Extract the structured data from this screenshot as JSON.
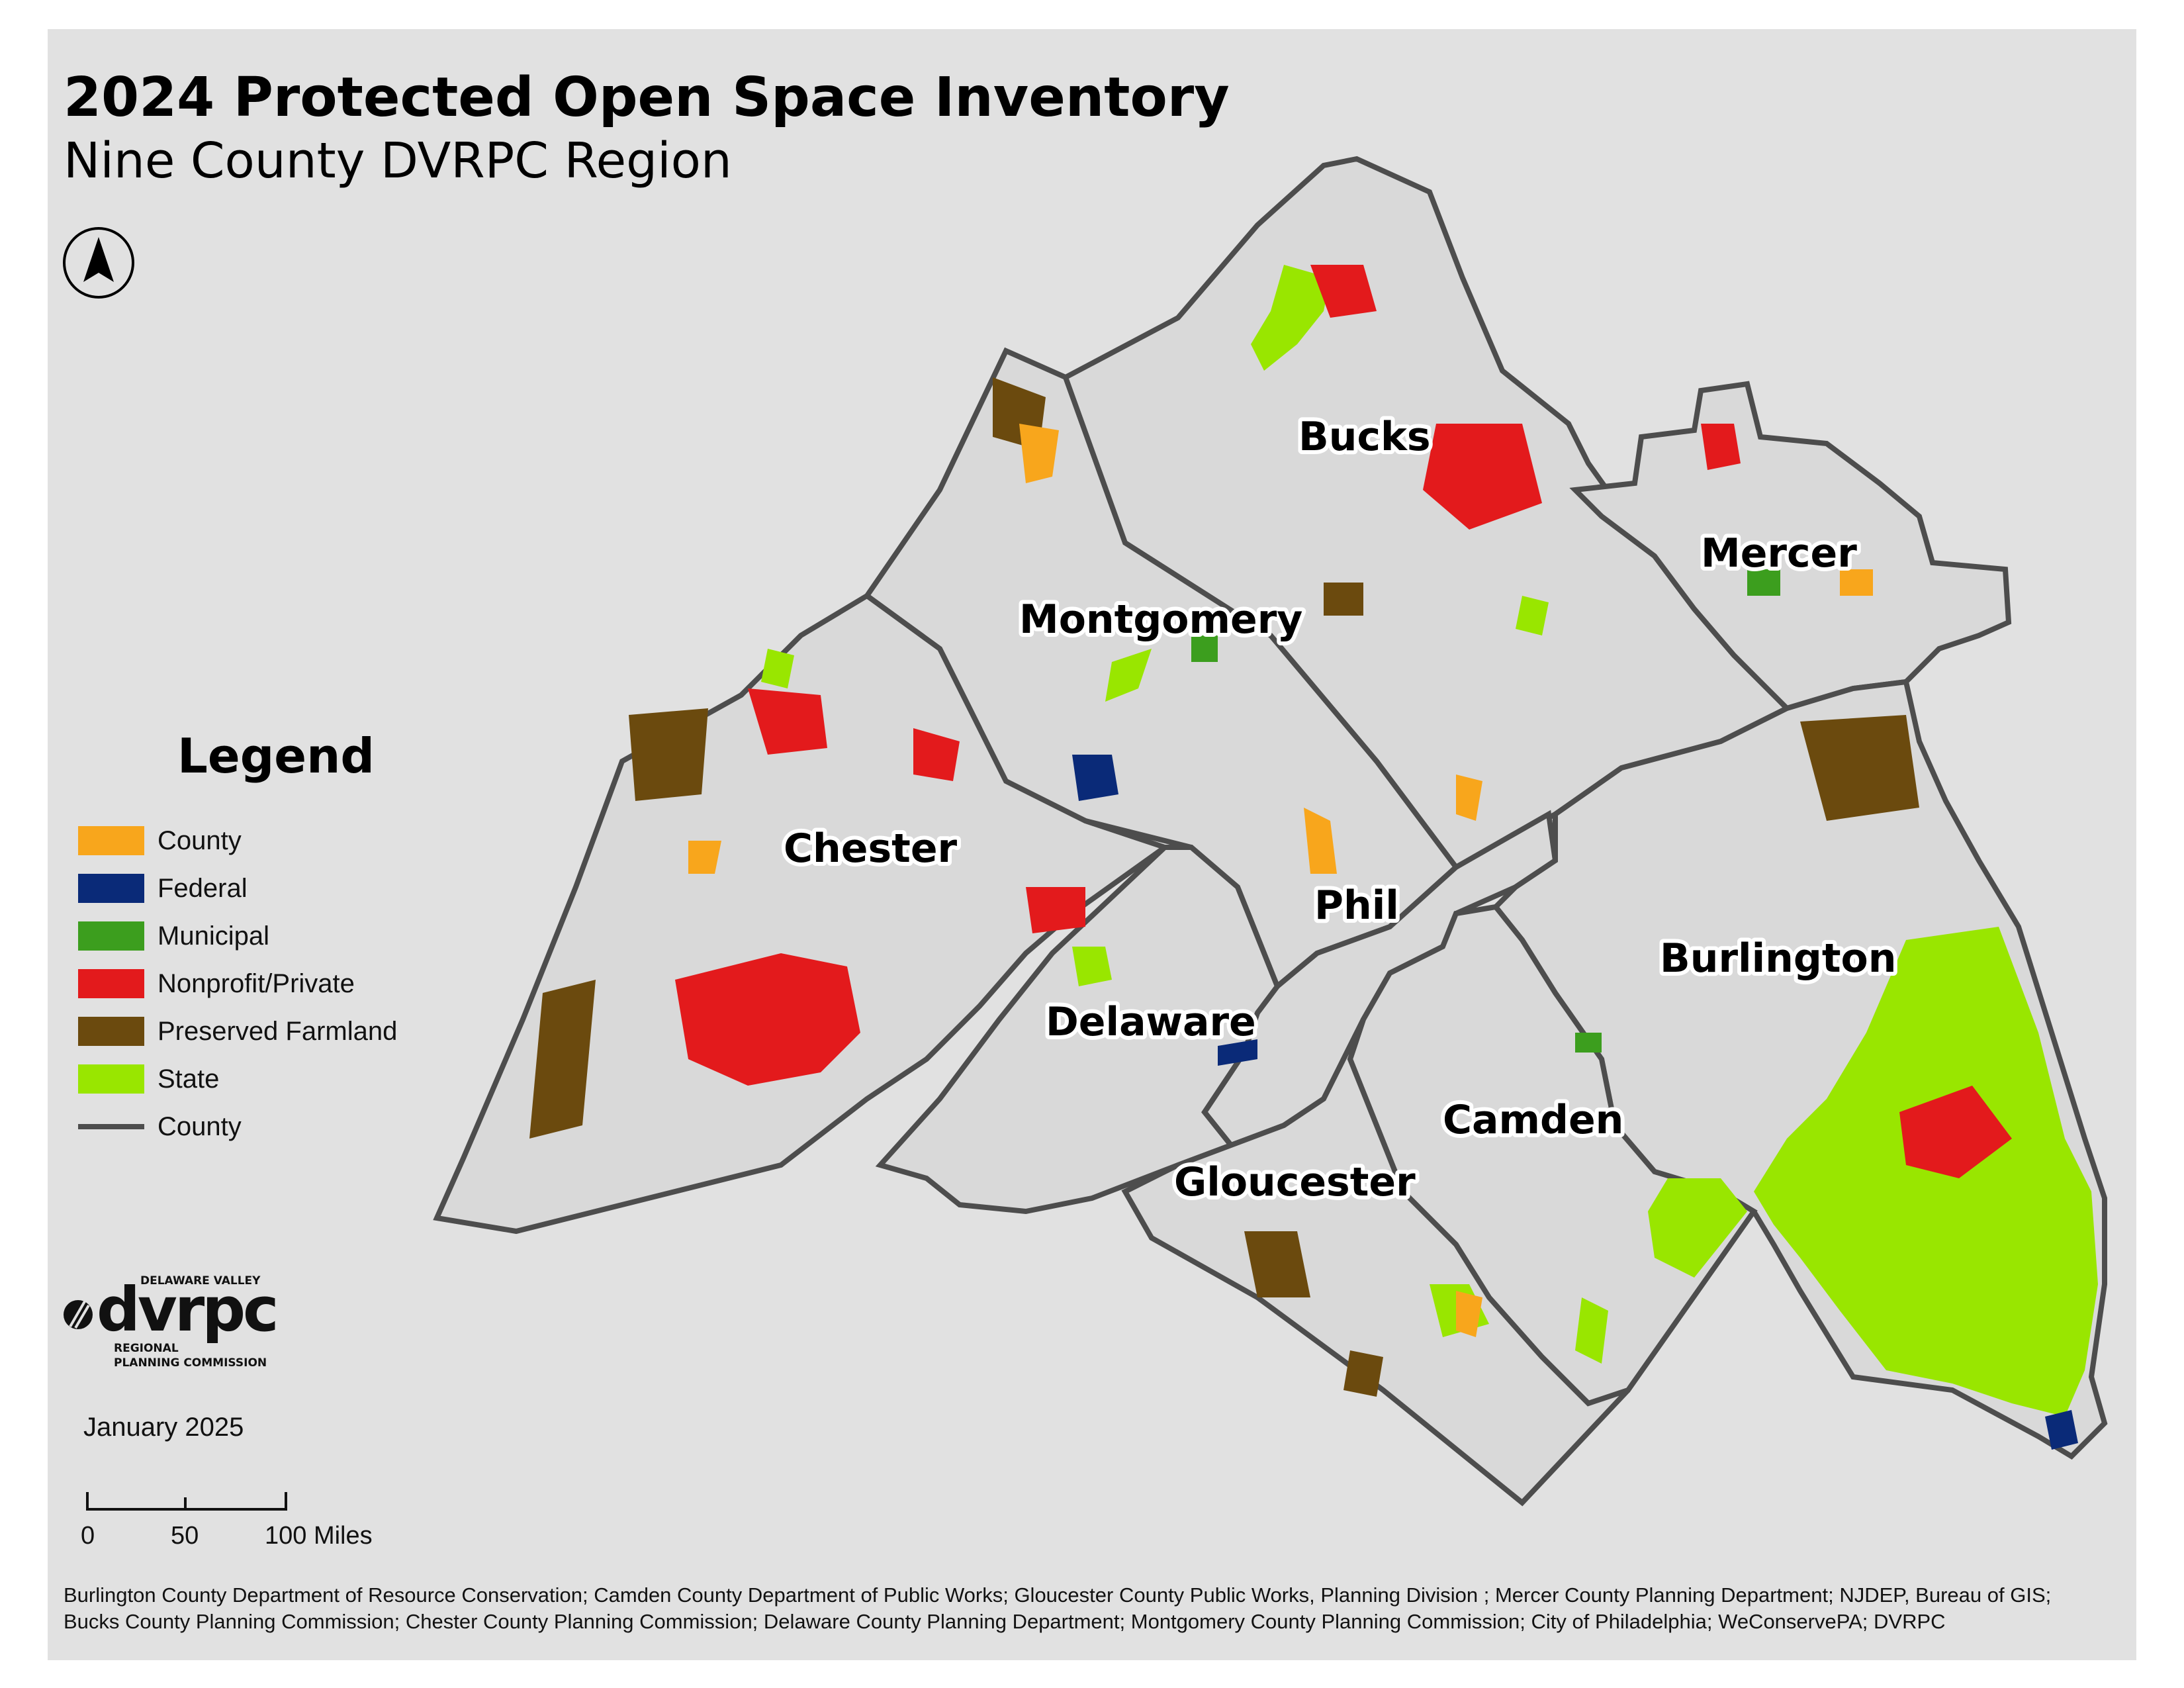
{
  "title": "2024 Protected Open Space Inventory",
  "subtitle": "Nine County DVRPC Region",
  "north_arrow": "north-arrow-icon",
  "counties": [
    {
      "id": "bucks",
      "label": "Bucks"
    },
    {
      "id": "mercer",
      "label": "Mercer"
    },
    {
      "id": "montgomery",
      "label": "Montgomery"
    },
    {
      "id": "chester",
      "label": "Chester"
    },
    {
      "id": "phil",
      "label": "Phil"
    },
    {
      "id": "burlington",
      "label": "Burlington"
    },
    {
      "id": "delaware",
      "label": "Delaware"
    },
    {
      "id": "camden",
      "label": "Camden"
    },
    {
      "id": "gloucester",
      "label": "Gloucester"
    }
  ],
  "legend": {
    "title": "Legend",
    "items": [
      {
        "label": "County",
        "color": "#f8a61c",
        "kind": "fill"
      },
      {
        "label": "Federal",
        "color": "#0a2a78",
        "kind": "fill"
      },
      {
        "label": "Municipal",
        "color": "#3c9e1e",
        "kind": "fill"
      },
      {
        "label": "Nonprofit/Private",
        "color": "#e31a1c",
        "kind": "fill"
      },
      {
        "label": "Preserved Farmland",
        "color": "#6b4a0e",
        "kind": "fill"
      },
      {
        "label": "State",
        "color": "#99e600",
        "kind": "fill"
      },
      {
        "label": "County",
        "color": "#4d4d4d",
        "kind": "line"
      }
    ]
  },
  "logo": {
    "top": "DELAWARE VALLEY",
    "name": "dvrpc",
    "bottom1": "REGIONAL",
    "bottom2": "PLANNING COMMISSION"
  },
  "date": "January 2025",
  "scalebar": {
    "ticks": [
      "0",
      "50",
      "100 Miles"
    ]
  },
  "credits": [
    "Burlington County Department of Resource Conservation; Camden County Department of Public Works; Gloucester County Public Works, Planning Division ; Mercer County Planning Department; NJDEP, Bureau of GIS;",
    "Bucks County Planning Commission; Chester County Planning Commission; Delaware County Planning Department; Montgomery County Planning Commission; City of Philadelphia; WeConservePA; DVRPC"
  ]
}
